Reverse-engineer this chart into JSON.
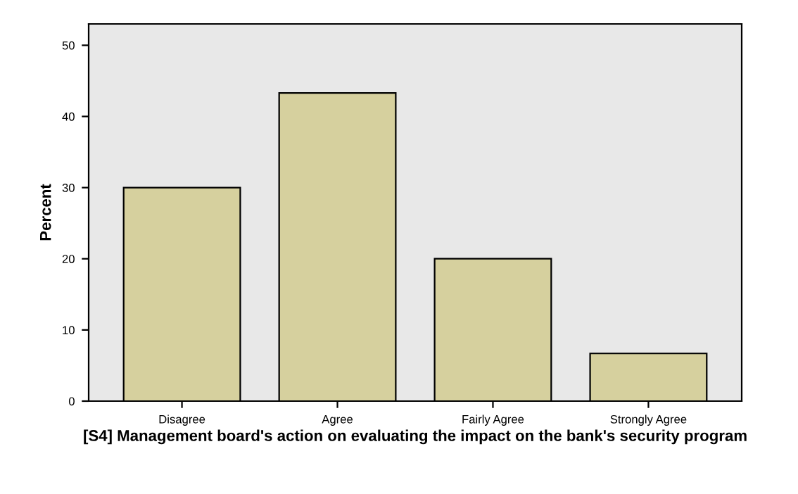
{
  "chart_data": {
    "type": "bar",
    "xlabel": "[S4] Management board's action on evaluating the impact on the bank's security program",
    "ylabel": "Percent",
    "categories": [
      "Disagree",
      "Agree",
      "Fairly Agree",
      "Strongly Agree"
    ],
    "values": [
      30,
      43.3,
      20,
      6.7
    ],
    "color": "#d6d09e",
    "ylim": [
      0,
      53
    ],
    "yticks": [
      0,
      10,
      20,
      30,
      40,
      50
    ],
    "grid": false,
    "legend": false
  }
}
